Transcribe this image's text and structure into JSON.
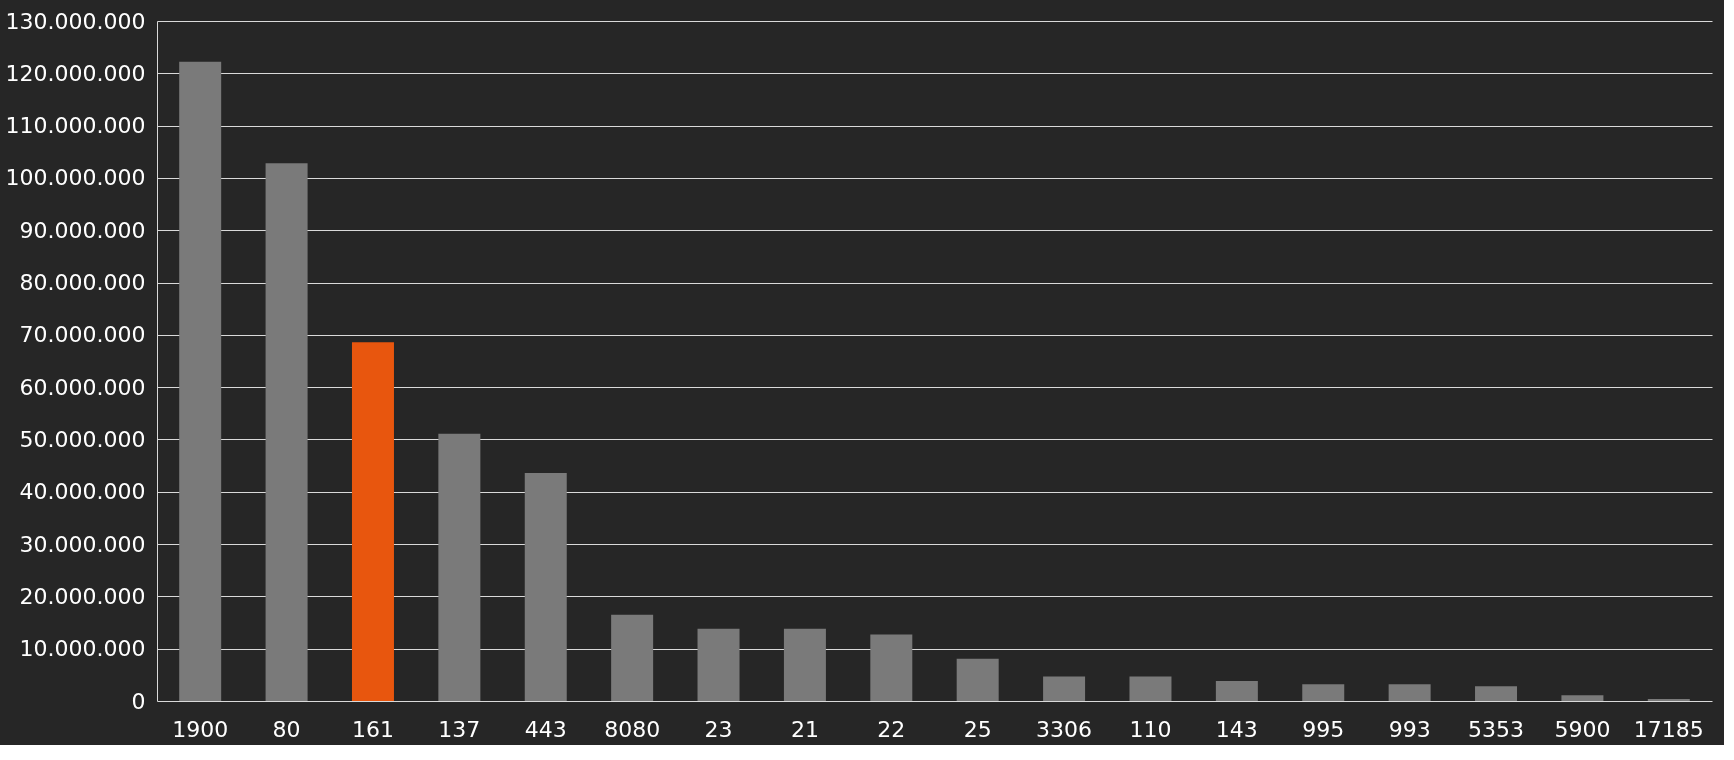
{
  "chart_data": {
    "type": "bar",
    "categories": [
      "1900",
      "80",
      "161",
      "137",
      "443",
      "8080",
      "23",
      "21",
      "22",
      "25",
      "3306",
      "110",
      "143",
      "995",
      "993",
      "5353",
      "5900",
      "17185"
    ],
    "values": [
      122200000,
      102800000,
      68600000,
      51100000,
      43600000,
      16500000,
      13800000,
      13800000,
      12700000,
      8100000,
      4700000,
      4700000,
      3800000,
      3200000,
      3200000,
      2800000,
      1100000,
      400000
    ],
    "colors": [
      "#7a7a7a",
      "#7a7a7a",
      "#e8560e",
      "#7a7a7a",
      "#7a7a7a",
      "#7a7a7a",
      "#7a7a7a",
      "#7a7a7a",
      "#7a7a7a",
      "#7a7a7a",
      "#7a7a7a",
      "#7a7a7a",
      "#7a7a7a",
      "#7a7a7a",
      "#7a7a7a",
      "#7a7a7a",
      "#7a7a7a",
      "#7a7a7a"
    ],
    "ylim": [
      0,
      130000000
    ],
    "yticks": [
      0,
      {
        "value": 10000000,
        "label": "10.000.000"
      },
      {
        "value": 20000000,
        "label": "20.000.000"
      },
      {
        "value": 30000000,
        "label": "30.000.000"
      },
      {
        "value": 40000000,
        "label": "40.000.000"
      },
      {
        "value": 50000000,
        "label": "50.000.000"
      },
      {
        "value": 60000000,
        "label": "60.000.000"
      },
      {
        "value": 70000000,
        "label": "70.000.000"
      },
      {
        "value": 80000000,
        "label": "80.000.000"
      },
      {
        "value": 90000000,
        "label": "90.000.000"
      },
      {
        "value": 100000000,
        "label": "100.000.000"
      },
      {
        "value": 110000000,
        "label": "110.000.000"
      },
      {
        "value": 120000000,
        "label": "120.000.000"
      },
      {
        "value": 130000000,
        "label": "130.000.000"
      }
    ],
    "grid": "y"
  }
}
